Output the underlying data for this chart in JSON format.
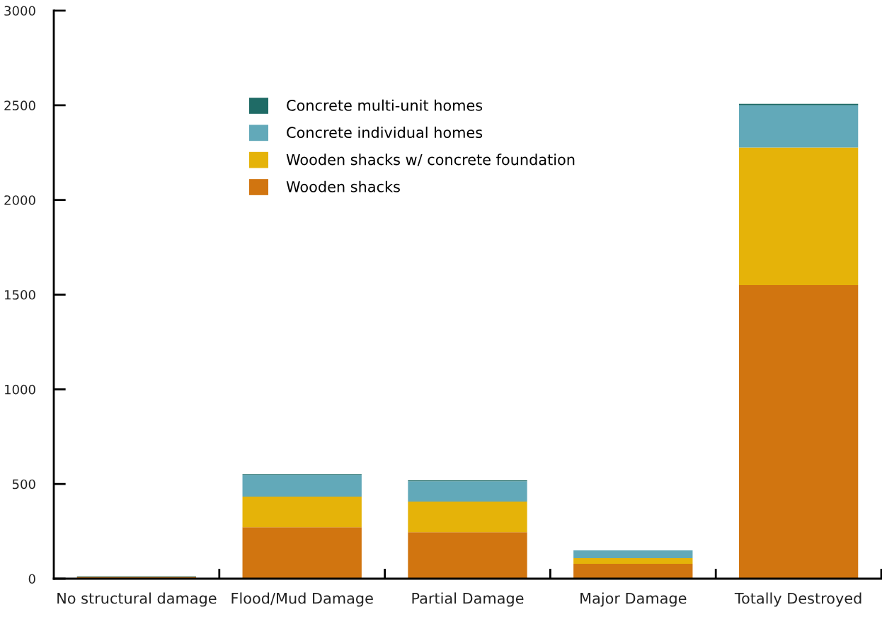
{
  "chart_data": {
    "type": "bar",
    "stacked": true,
    "categories": [
      "No structural damage",
      "Flood/Mud Damage",
      "Partial Damage",
      "Major Damage",
      "Totally Destroyed"
    ],
    "series": [
      {
        "name": "Wooden shacks",
        "color": "#d17510",
        "values": [
          10,
          272,
          246,
          78,
          1550
        ]
      },
      {
        "name": "Wooden shacks w/ concrete foundation",
        "color": "#e5b309",
        "values": [
          null,
          161,
          161,
          30,
          727
        ]
      },
      {
        "name": "Concrete individual homes",
        "color": "#62a9b9",
        "values": [
          4,
          115,
          108,
          41,
          223
        ]
      },
      {
        "name": "Concrete multi-unit homes",
        "color": "#1f6b66",
        "values": [
          0,
          4,
          4,
          0,
          8
        ]
      }
    ],
    "ylim": [
      0,
      3000
    ],
    "yticks": [
      0,
      500,
      1000,
      1500,
      2000,
      2500,
      3000
    ],
    "legend": "top left",
    "grid": false
  }
}
